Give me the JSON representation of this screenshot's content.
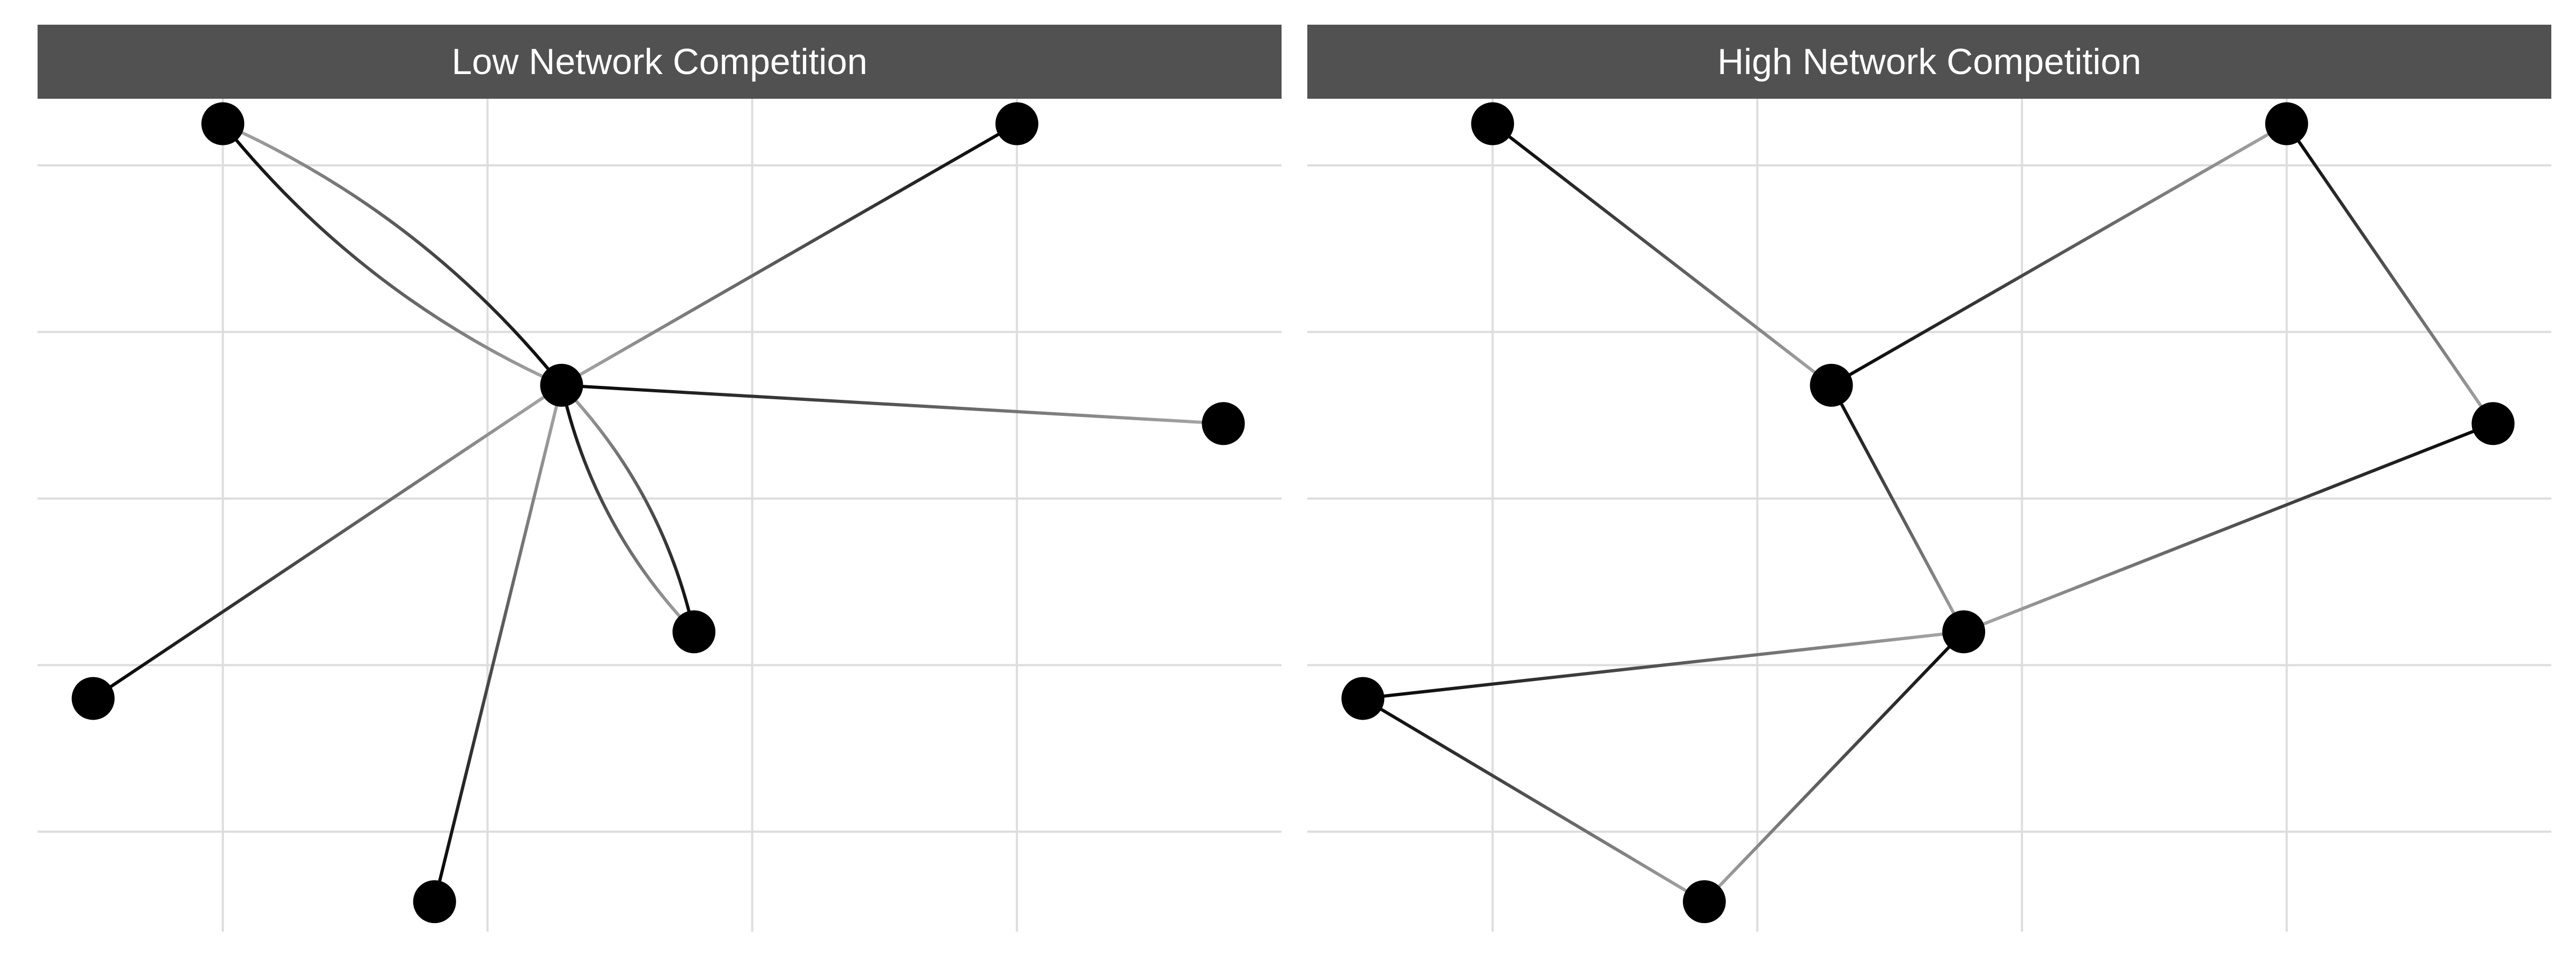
{
  "colors": {
    "strip_background": "#515151",
    "strip_text": "#ffffff",
    "grid": "#dddddd",
    "node": "#000000",
    "edge_start": "#000000",
    "edge_end": "#aaaaaa"
  },
  "panels": [
    {
      "title": "Low Network Competition",
      "nodes": [
        {
          "id": "a",
          "x": 0.7,
          "y": 5.25
        },
        {
          "id": "b",
          "x": 3.7,
          "y": 5.25
        },
        {
          "id": "c",
          "x": 1.98,
          "y": 3.68
        },
        {
          "id": "d",
          "x": 4.48,
          "y": 3.45
        },
        {
          "id": "e",
          "x": 2.48,
          "y": 2.2
        },
        {
          "id": "f",
          "x": 0.21,
          "y": 1.8
        },
        {
          "id": "g",
          "x": 1.5,
          "y": 0.58
        }
      ],
      "edges": [
        {
          "from": "a",
          "to": "c",
          "curve": 0.12
        },
        {
          "from": "c",
          "to": "a",
          "curve": 0.12
        },
        {
          "from": "b",
          "to": "c",
          "curve": 0
        },
        {
          "from": "c",
          "to": "d",
          "curve": 0
        },
        {
          "from": "f",
          "to": "c",
          "curve": 0
        },
        {
          "from": "c",
          "to": "e",
          "curve": 0.14
        },
        {
          "from": "e",
          "to": "c",
          "curve": 0.14
        },
        {
          "from": "g",
          "to": "c",
          "curve": 0
        }
      ]
    },
    {
      "title": "High Network Competition",
      "nodes": [
        {
          "id": "a",
          "x": 0.7,
          "y": 5.25
        },
        {
          "id": "b",
          "x": 3.7,
          "y": 5.25
        },
        {
          "id": "c",
          "x": 1.98,
          "y": 3.68
        },
        {
          "id": "d",
          "x": 4.48,
          "y": 3.45
        },
        {
          "id": "e",
          "x": 2.48,
          "y": 2.2
        },
        {
          "id": "f",
          "x": 0.21,
          "y": 1.8
        },
        {
          "id": "g",
          "x": 1.5,
          "y": 0.58
        }
      ],
      "edges": [
        {
          "from": "a",
          "to": "c",
          "curve": 0
        },
        {
          "from": "c",
          "to": "b",
          "curve": 0
        },
        {
          "from": "b",
          "to": "d",
          "curve": 0
        },
        {
          "from": "d",
          "to": "e",
          "curve": 0
        },
        {
          "from": "c",
          "to": "e",
          "curve": 0
        },
        {
          "from": "f",
          "to": "e",
          "curve": 0
        },
        {
          "from": "f",
          "to": "g",
          "curve": 0
        },
        {
          "from": "e",
          "to": "g",
          "curve": 0
        }
      ]
    }
  ],
  "axes": {
    "x_range": [
      0,
      4.7
    ],
    "y_range": [
      0.4,
      5.4
    ],
    "x_gridlines": [
      0.7,
      1.7,
      2.7,
      3.7
    ],
    "y_gridlines": [
      1,
      2,
      3,
      4,
      5
    ]
  }
}
